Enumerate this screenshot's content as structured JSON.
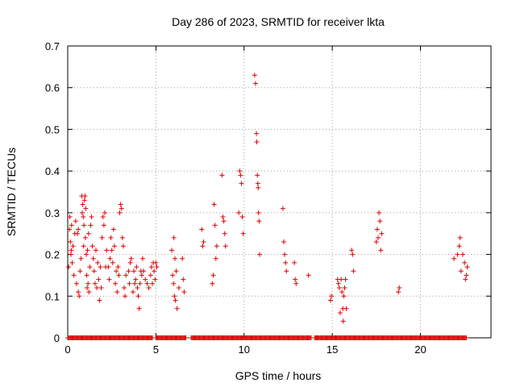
{
  "chart_data": {
    "type": "scatter",
    "title": "Day 286 of 2023, SRMTID for receiver lkta",
    "xlabel": "GPS time / hours",
    "ylabel": "SRMTID / TECUs",
    "xlim": [
      0,
      24
    ],
    "ylim": [
      0,
      0.7
    ],
    "xticks": [
      0,
      5,
      10,
      15,
      20
    ],
    "yticks": [
      0,
      0.1,
      0.2,
      0.3,
      0.4,
      0.5,
      0.6,
      0.7
    ],
    "grid": true,
    "marker": "+",
    "color": "#dd0000",
    "series": [
      {
        "name": "SRMTID",
        "points": [
          [
            0.05,
            0.17
          ],
          [
            0.1,
            0.26
          ],
          [
            0.12,
            0.29
          ],
          [
            0.15,
            0.23
          ],
          [
            0.18,
            0.2
          ],
          [
            0.2,
            0.21
          ],
          [
            0.22,
            0.27
          ],
          [
            0.25,
            0.18
          ],
          [
            0.3,
            0.22
          ],
          [
            0.35,
            0.15
          ],
          [
            0.4,
            0.25
          ],
          [
            0.45,
            0.28
          ],
          [
            0.5,
            0.13
          ],
          [
            0.55,
            0.25
          ],
          [
            0.6,
            0.26
          ],
          [
            0.6,
            0.11
          ],
          [
            0.65,
            0.1
          ],
          [
            0.7,
            0.16
          ],
          [
            0.75,
            0.19
          ],
          [
            0.8,
            0.34
          ],
          [
            0.82,
            0.3
          ],
          [
            0.85,
            0.32
          ],
          [
            0.88,
            0.29
          ],
          [
            0.9,
            0.22
          ],
          [
            0.92,
            0.27
          ],
          [
            0.95,
            0.33
          ],
          [
            0.98,
            0.34
          ],
          [
            1.0,
            0.24
          ],
          [
            1.02,
            0.31
          ],
          [
            1.05,
            0.2
          ],
          [
            1.08,
            0.15
          ],
          [
            1.1,
            0.12
          ],
          [
            1.12,
            0.21
          ],
          [
            1.15,
            0.13
          ],
          [
            1.18,
            0.25
          ],
          [
            1.2,
            0.11
          ],
          [
            1.25,
            0.17
          ],
          [
            1.3,
            0.27
          ],
          [
            1.35,
            0.29
          ],
          [
            1.4,
            0.22
          ],
          [
            1.45,
            0.19
          ],
          [
            1.5,
            0.16
          ],
          [
            1.55,
            0.13
          ],
          [
            1.6,
            0.21
          ],
          [
            1.65,
            0.12
          ],
          [
            1.7,
            0.18
          ],
          [
            1.75,
            0.14
          ],
          [
            1.8,
            0.09
          ],
          [
            1.85,
            0.17
          ],
          [
            1.9,
            0.12
          ],
          [
            1.95,
            0.24
          ],
          [
            2.0,
            0.29
          ],
          [
            2.05,
            0.27
          ],
          [
            2.1,
            0.3
          ],
          [
            2.15,
            0.17
          ],
          [
            2.2,
            0.21
          ],
          [
            2.3,
            0.17
          ],
          [
            2.35,
            0.14
          ],
          [
            2.4,
            0.19
          ],
          [
            2.45,
            0.24
          ],
          [
            2.5,
            0.21
          ],
          [
            2.55,
            0.18
          ],
          [
            2.6,
            0.26
          ],
          [
            2.65,
            0.22
          ],
          [
            2.7,
            0.13
          ],
          [
            2.75,
            0.16
          ],
          [
            2.8,
            0.11
          ],
          [
            2.85,
            0.17
          ],
          [
            2.9,
            0.15
          ],
          [
            2.95,
            0.3
          ],
          [
            3.0,
            0.32
          ],
          [
            3.05,
            0.31
          ],
          [
            3.1,
            0.24
          ],
          [
            3.15,
            0.22
          ],
          [
            3.2,
            0.12
          ],
          [
            3.25,
            0.1
          ],
          [
            3.3,
            0.15
          ],
          [
            3.45,
            0.16
          ],
          [
            3.5,
            0.13
          ],
          [
            3.55,
            0.18
          ],
          [
            3.6,
            0.19
          ],
          [
            3.7,
            0.11
          ],
          [
            3.75,
            0.16
          ],
          [
            3.8,
            0.13
          ],
          [
            3.85,
            0.14
          ],
          [
            3.9,
            0.17
          ],
          [
            3.95,
            0.12
          ],
          [
            4.0,
            0.1
          ],
          [
            4.05,
            0.07
          ],
          [
            4.1,
            0.13
          ],
          [
            4.15,
            0.16
          ],
          [
            4.2,
            0.15
          ],
          [
            4.25,
            0.19
          ],
          [
            4.3,
            0.16
          ],
          [
            4.4,
            0.14
          ],
          [
            4.5,
            0.13
          ],
          [
            4.6,
            0.12
          ],
          [
            4.7,
            0.15
          ],
          [
            4.75,
            0.17
          ],
          [
            4.8,
            0.13
          ],
          [
            4.85,
            0.18
          ],
          [
            4.9,
            0.16
          ],
          [
            4.95,
            0.14
          ],
          [
            5.0,
            0.18
          ],
          [
            5.05,
            0.17
          ],
          [
            5.9,
            0.21
          ],
          [
            5.95,
            0.15
          ],
          [
            6.0,
            0.13
          ],
          [
            6.02,
            0.24
          ],
          [
            6.05,
            0.1
          ],
          [
            6.08,
            0.19
          ],
          [
            6.1,
            0.09
          ],
          [
            6.15,
            0.16
          ],
          [
            6.2,
            0.07
          ],
          [
            6.3,
            0.12
          ],
          [
            6.5,
            0.19
          ],
          [
            6.55,
            0.14
          ],
          [
            6.6,
            0.11
          ],
          [
            7.6,
            0.26
          ],
          [
            7.65,
            0.22
          ],
          [
            7.7,
            0.23
          ],
          [
            8.2,
            0.13
          ],
          [
            8.25,
            0.15
          ],
          [
            8.3,
            0.32
          ],
          [
            8.35,
            0.27
          ],
          [
            8.4,
            0.19
          ],
          [
            8.45,
            0.22
          ],
          [
            8.75,
            0.39
          ],
          [
            8.8,
            0.29
          ],
          [
            8.85,
            0.28
          ],
          [
            8.9,
            0.25
          ],
          [
            8.95,
            0.22
          ],
          [
            9.7,
            0.3
          ],
          [
            9.75,
            0.4
          ],
          [
            9.8,
            0.39
          ],
          [
            9.85,
            0.37
          ],
          [
            9.9,
            0.29
          ],
          [
            9.95,
            0.25
          ],
          [
            10.6,
            0.63
          ],
          [
            10.65,
            0.61
          ],
          [
            10.7,
            0.49
          ],
          [
            10.72,
            0.47
          ],
          [
            10.75,
            0.39
          ],
          [
            10.78,
            0.37
          ],
          [
            10.8,
            0.36
          ],
          [
            10.82,
            0.3
          ],
          [
            10.85,
            0.28
          ],
          [
            10.88,
            0.2
          ],
          [
            12.2,
            0.31
          ],
          [
            12.25,
            0.23
          ],
          [
            12.3,
            0.2
          ],
          [
            12.35,
            0.18
          ],
          [
            12.4,
            0.16
          ],
          [
            12.85,
            0.18
          ],
          [
            12.9,
            0.14
          ],
          [
            12.95,
            0.13
          ],
          [
            13.65,
            0.15
          ],
          [
            14.9,
            0.09
          ],
          [
            14.95,
            0.1
          ],
          [
            15.3,
            0.14
          ],
          [
            15.35,
            0.13
          ],
          [
            15.4,
            0.12
          ],
          [
            15.45,
            0.06
          ],
          [
            15.5,
            0.14
          ],
          [
            15.55,
            0.11
          ],
          [
            15.6,
            0.07
          ],
          [
            15.62,
            0.04
          ],
          [
            15.65,
            0.1
          ],
          [
            15.7,
            0.12
          ],
          [
            15.75,
            0.14
          ],
          [
            15.8,
            0.07
          ],
          [
            16.1,
            0.21
          ],
          [
            16.15,
            0.2
          ],
          [
            16.2,
            0.16
          ],
          [
            17.5,
            0.23
          ],
          [
            17.55,
            0.26
          ],
          [
            17.6,
            0.24
          ],
          [
            17.65,
            0.3
          ],
          [
            17.7,
            0.28
          ],
          [
            17.75,
            0.21
          ],
          [
            17.8,
            0.25
          ],
          [
            18.75,
            0.11
          ],
          [
            18.8,
            0.12
          ],
          [
            21.9,
            0.19
          ],
          [
            22.1,
            0.2
          ],
          [
            22.2,
            0.22
          ],
          [
            22.25,
            0.24
          ],
          [
            22.3,
            0.16
          ],
          [
            22.4,
            0.2
          ],
          [
            22.5,
            0.18
          ],
          [
            22.55,
            0.14
          ],
          [
            22.6,
            0.15
          ],
          [
            22.65,
            0.17
          ]
        ],
        "zero_ranges": [
          [
            0.0,
            4.8
          ],
          [
            5.0,
            6.7
          ],
          [
            7.0,
            13.8
          ],
          [
            14.0,
            22.6
          ]
        ]
      }
    ]
  }
}
